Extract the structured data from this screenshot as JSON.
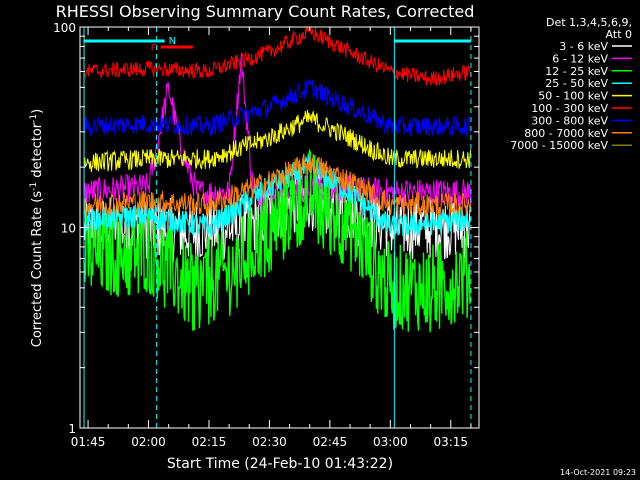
{
  "chart_data": {
    "type": "line",
    "title": "RHESSI Observing Summary Count Rates, Corrected",
    "xlabel": "Start Time (24-Feb-10 01:43:22)",
    "ylabel": "Corrected Count Rate (s",
    "ylabel_sup": "-1",
    "ylabel_mid": " detector",
    "ylabel_end": ")",
    "y_scale": "log",
    "xlim": [
      "01:43",
      "03:22"
    ],
    "ylim": [
      1,
      100
    ],
    "x_ticks": [
      "01:45",
      "02:00",
      "02:15",
      "02:30",
      "02:45",
      "03:00",
      "03:15"
    ],
    "y_ticks": [
      "1",
      "10",
      "100"
    ],
    "legend_header": [
      "Det 1,3,4,5,6,9,",
      "Att 0"
    ],
    "legend_position": "top-right",
    "footer_timestamp": "14-Oct-2021 09:23",
    "flags": [
      {
        "label": "N",
        "color": "#00ffff",
        "segments": [
          [
            "01:44",
            "02:04"
          ],
          [
            "03:01",
            "03:20"
          ]
        ]
      },
      {
        "label": "F",
        "color": "#ff0000",
        "segments": [
          [
            "02:03",
            "02:11"
          ]
        ]
      }
    ],
    "vertical_lines": [
      {
        "time": "01:44",
        "style": "solid",
        "color": "#00ffff"
      },
      {
        "time": "02:02",
        "style": "dashed",
        "color": "#00ffff"
      },
      {
        "time": "03:01",
        "style": "solid",
        "color": "#00ffff"
      },
      {
        "time": "03:20",
        "style": "dashed",
        "color": "#00ffff"
      }
    ],
    "series": [
      {
        "name": "3 - 6 keV",
        "color": "#ffffff",
        "x": [
          "01:44",
          "02:00",
          "02:10",
          "02:25",
          "02:30",
          "02:40",
          "02:50",
          "03:00",
          "03:20"
        ],
        "y": [
          10,
          10,
          9.5,
          10,
          12,
          14,
          12,
          10,
          10
        ]
      },
      {
        "name": "6 - 12 keV",
        "color": "#ff00ff",
        "x": [
          "01:44",
          "02:00",
          "02:05",
          "02:08",
          "02:12",
          "02:20",
          "02:23",
          "02:26",
          "02:40",
          "03:00",
          "03:20"
        ],
        "y": [
          15,
          16,
          50,
          25,
          15,
          15,
          70,
          15,
          16,
          15,
          15
        ]
      },
      {
        "name": "12 - 25 keV",
        "color": "#00ff00",
        "x": [
          "01:44",
          "02:00",
          "02:10",
          "02:20",
          "02:30",
          "02:40",
          "02:50",
          "03:00",
          "03:10",
          "03:20"
        ],
        "y": [
          7,
          8,
          5,
          6,
          10,
          15,
          10,
          5,
          5,
          6
        ]
      },
      {
        "name": "25 - 50 keV",
        "color": "#00ffff",
        "x": [
          "01:44",
          "02:00",
          "02:15",
          "02:30",
          "02:40",
          "02:50",
          "03:00",
          "03:20"
        ],
        "y": [
          11,
          11.5,
          10,
          16,
          20,
          15,
          10,
          11
        ]
      },
      {
        "name": "50 - 100 keV",
        "color": "#ffff00",
        "x": [
          "01:44",
          "02:00",
          "02:15",
          "02:30",
          "02:40",
          "02:50",
          "03:00",
          "03:20"
        ],
        "y": [
          21,
          22,
          22,
          28,
          35,
          28,
          22,
          22
        ]
      },
      {
        "name": "100 - 300 keV",
        "color": "#ff0000",
        "x": [
          "01:44",
          "02:00",
          "02:15",
          "02:30",
          "02:40",
          "02:50",
          "03:00",
          "03:10",
          "03:20"
        ],
        "y": [
          60,
          62,
          60,
          75,
          95,
          75,
          60,
          55,
          60
        ]
      },
      {
        "name": "300 - 800 keV",
        "color": "#0000ff",
        "x": [
          "01:44",
          "02:00",
          "02:15",
          "02:30",
          "02:40",
          "02:50",
          "03:00",
          "03:20"
        ],
        "y": [
          32,
          33,
          32,
          40,
          50,
          40,
          32,
          32
        ]
      },
      {
        "name": "800 - 7000 keV",
        "color": "#ff8000",
        "x": [
          "01:44",
          "02:00",
          "02:15",
          "02:30",
          "02:40",
          "02:50",
          "03:00",
          "03:20"
        ],
        "y": [
          13,
          13.5,
          13,
          17,
          21,
          17,
          13,
          13
        ]
      },
      {
        "name": "7000 - 15000 keV",
        "color": "#808000",
        "x": [],
        "y": []
      }
    ]
  }
}
